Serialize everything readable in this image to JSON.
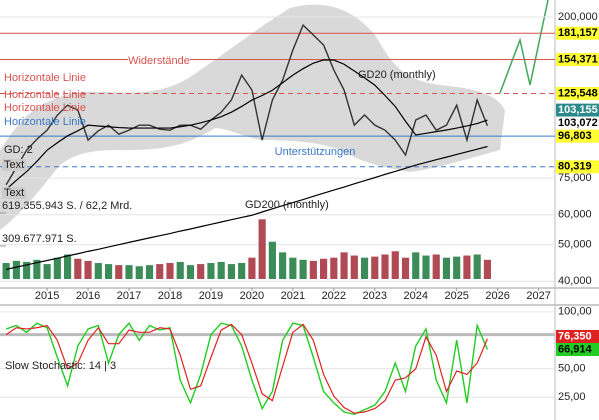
{
  "chart_data": [
    {
      "type": "line",
      "x": [
        2014,
        2014.25,
        2014.5,
        2014.75,
        2015,
        2015.25,
        2015.5,
        2015.75,
        2016,
        2016.25,
        2016.5,
        2016.75,
        2017,
        2017.25,
        2017.5,
        2017.75,
        2018,
        2018.25,
        2018.5,
        2018.75,
        2019,
        2019.25,
        2019.5,
        2019.75,
        2020,
        2020.25,
        2020.5,
        2020.75,
        2021,
        2021.25,
        2021.5,
        2021.75,
        2022,
        2022.25,
        2022.5,
        2022.75,
        2023,
        2023.25,
        2023.5,
        2023.75,
        2024,
        2024.25,
        2024.5,
        2024.75,
        2025,
        2025.25,
        2025.5,
        2025.75
      ],
      "xlim": [
        2013.85,
        2027.4
      ],
      "xticks": [
        2015,
        2016,
        2017,
        2018,
        2019,
        2020,
        2021,
        2022,
        2023,
        2024,
        2025,
        2026,
        2027
      ],
      "ylim": [
        38400,
        221800
      ],
      "log": true,
      "grid": true,
      "yticks": [
        {
          "value": 40000,
          "label": "40,000"
        },
        {
          "value": 50000,
          "label": "50,000"
        },
        {
          "value": 60000,
          "label": "60,000"
        },
        {
          "value": 75000,
          "label": "75,000"
        },
        {
          "value": 200000,
          "label": "200,000"
        }
      ],
      "series": [
        {
          "color": "#333333",
          "values": [
            72000,
            80000,
            88900,
            95000,
            100400,
            110000,
            116900,
            113500,
            94500,
            100000,
            103500,
            98000,
            100400,
            103500,
            103500,
            101000,
            100400,
            103500,
            103500,
            101000,
            106800,
            112000,
            120600,
            140400,
            128200,
            94500,
            120600,
            136200,
            163600,
            190400,
            179200,
            168600,
            144800,
            128200,
            103500,
            110100,
            103500,
            100400,
            94500,
            86300,
            106800,
            110100,
            100400,
            103500,
            116900,
            94500,
            120600,
            103155
          ]
        },
        {
          "name": "GD20 (monthly)",
          "color": "#000000",
          "values": [
            70000,
            74000,
            78000,
            83000,
            88900,
            93000,
            97000,
            100000,
            103500,
            103000,
            102500,
            102000,
            101700,
            101700,
            101700,
            101700,
            101700,
            102500,
            103500,
            105000,
            106800,
            109000,
            112000,
            116000,
            120600,
            124000,
            128000,
            134000,
            140400,
            146000,
            151000,
            154000,
            153900,
            150000,
            144000,
            138000,
            132100,
            124000,
            116000,
            106000,
            97500,
            98500,
            99500,
            100500,
            101700,
            103000,
            104500,
            106800
          ]
        },
        {
          "name": "GD200 (monthly)",
          "color": "#000000",
          "values": [
            43000,
            43600,
            44200,
            44800,
            45400,
            46000,
            46700,
            47300,
            48000,
            48600,
            49300,
            50000,
            50700,
            51400,
            52100,
            52800,
            53500,
            54300,
            55000,
            55800,
            56600,
            57400,
            58200,
            59000,
            59800,
            61000,
            62200,
            63400,
            64600,
            65800,
            67100,
            68400,
            69700,
            71000,
            72400,
            73800,
            75200,
            76700,
            78100,
            79600,
            81200,
            82500,
            83900,
            85200,
            86600,
            88000,
            89400,
            90900
          ]
        }
      ],
      "levels": [
        {
          "value": 181157,
          "label": "181,157",
          "color": "#d9534f",
          "line": "solid",
          "box": "#ffff33",
          "box_text": "#000000"
        },
        {
          "value": 154371,
          "label": "154,371",
          "color": "#d9534f",
          "line": "solid",
          "box": "#ffff33",
          "box_text": "#000000"
        },
        {
          "value": 125548,
          "label": "125,548",
          "color": "#d9534f",
          "line": "dashed",
          "box": "#ffff33",
          "box_text": "#000000"
        },
        {
          "value": 103155,
          "label": "103,155",
          "color": "#2d8a8a",
          "line": "none",
          "box": "#2d8a8a",
          "box_text": "#ffffff"
        },
        {
          "value": 103072,
          "label": "103,072",
          "color": "#2d8a8a",
          "line": "none",
          "box": "#ffffff",
          "box_text": "#000000"
        },
        {
          "value": 96803,
          "label": "96,803",
          "color": "#3a78c8",
          "line": "solid",
          "box": "#ffff33",
          "box_text": "#000000"
        },
        {
          "value": 80319,
          "label": "80,319",
          "color": "#3a78c8",
          "line": "dashed",
          "box": "#ffff33",
          "box_text": "#000000"
        }
      ],
      "annotations": [
        "Widerstände",
        "Horizontale Linie",
        "Horizontale Linie",
        "Horizontale Linie",
        "Horizontale Linie",
        "GD: 2",
        "Text",
        "Text",
        "Unterstützungen"
      ]
    },
    {
      "type": "bar",
      "x": [
        2014,
        2014.25,
        2014.5,
        2014.75,
        2015,
        2015.25,
        2015.5,
        2015.75,
        2016,
        2016.25,
        2016.5,
        2016.75,
        2017,
        2017.25,
        2017.5,
        2017.75,
        2018,
        2018.25,
        2018.5,
        2018.75,
        2019,
        2019.25,
        2019.5,
        2019.75,
        2020,
        2020.25,
        2020.5,
        2020.75,
        2021,
        2021.25,
        2021.5,
        2021.75,
        2022,
        2022.25,
        2022.5,
        2022.75,
        2023,
        2023.25,
        2023.5,
        2023.75,
        2024,
        2024.25,
        2024.5,
        2024.75,
        2025,
        2025.25,
        2025.5,
        2025.75
      ],
      "xlim": [
        2013.85,
        2027.4
      ],
      "ylim": [
        0,
        619355943
      ],
      "yticks": [
        {
          "value": 619355943,
          "label": "619.355.943 S. / 62,2 Mrd."
        },
        {
          "value": 309677971,
          "label": "309.677.971 S."
        }
      ],
      "up_color": "#3c8c5a",
      "down_color": "#b04a55",
      "values": [
        150000000,
        170000000,
        160000000,
        180000000,
        140000000,
        200000000,
        230000000,
        190000000,
        170000000,
        150000000,
        140000000,
        130000000,
        130000000,
        120000000,
        130000000,
        140000000,
        150000000,
        160000000,
        130000000,
        140000000,
        150000000,
        160000000,
        140000000,
        150000000,
        200000000,
        560000000,
        350000000,
        250000000,
        200000000,
        180000000,
        170000000,
        190000000,
        200000000,
        250000000,
        220000000,
        200000000,
        210000000,
        230000000,
        260000000,
        200000000,
        250000000,
        220000000,
        230000000,
        200000000,
        210000000,
        220000000,
        230000000,
        180000000
      ]
    },
    {
      "type": "line",
      "title": "Slow Stochastic: 14 | 3",
      "x": [
        2014,
        2014.25,
        2014.5,
        2014.75,
        2015,
        2015.25,
        2015.5,
        2015.75,
        2016,
        2016.25,
        2016.5,
        2016.75,
        2017,
        2017.25,
        2017.5,
        2017.75,
        2018,
        2018.25,
        2018.5,
        2018.75,
        2019,
        2019.25,
        2019.5,
        2019.75,
        2020,
        2020.25,
        2020.5,
        2020.75,
        2021,
        2021.25,
        2021.5,
        2021.75,
        2022,
        2022.25,
        2022.5,
        2022.75,
        2023,
        2023.25,
        2023.5,
        2023.75,
        2024,
        2024.25,
        2024.5,
        2024.75,
        2025,
        2025.25,
        2025.5,
        2025.75
      ],
      "xlim": [
        2013.85,
        2027.4
      ],
      "ylim": [
        5,
        106
      ],
      "yticks": [
        {
          "value": 100,
          "label": "100,00"
        },
        {
          "value": 50,
          "label": "50,00"
        },
        {
          "value": 25,
          "label": "25,00"
        }
      ],
      "band": 80,
      "grid": true,
      "series": [
        {
          "color": "#22cc22",
          "label_text_color": "#000000",
          "values": [
            85,
            88,
            82,
            90,
            86,
            60,
            35,
            70,
            85,
            88,
            55,
            80,
            90,
            75,
            88,
            84,
            86,
            40,
            20,
            45,
            80,
            90,
            88,
            70,
            40,
            15,
            30,
            75,
            90,
            88,
            60,
            30,
            20,
            12,
            10,
            14,
            18,
            30,
            55,
            30,
            70,
            85,
            40,
            20,
            75,
            20,
            88,
            66.914
          ],
          "value_labels": [
            null,
            null,
            null,
            null,
            null,
            null,
            null,
            null,
            null,
            null,
            null,
            null,
            null,
            null,
            null,
            null,
            null,
            null,
            null,
            null,
            null,
            null,
            null,
            null,
            null,
            null,
            null,
            null,
            null,
            null,
            null,
            null,
            null,
            null,
            null,
            null,
            null,
            null,
            null,
            null,
            null,
            null,
            null,
            null,
            null,
            null,
            null,
            "66,914"
          ]
        },
        {
          "color": "#dd2222",
          "label_text_color": "#ffffff",
          "values": [
            80,
            86,
            85,
            86,
            88,
            75,
            50,
            55,
            75,
            86,
            72,
            72,
            84,
            82,
            82,
            86,
            85,
            62,
            32,
            35,
            60,
            84,
            89,
            80,
            55,
            28,
            22,
            52,
            82,
            89,
            75,
            45,
            26,
            16,
            11,
            12,
            15,
            22,
            40,
            42,
            50,
            78,
            62,
            30,
            48,
            45,
            55,
            76.35
          ],
          "value_labels": [
            null,
            null,
            null,
            null,
            null,
            null,
            null,
            null,
            null,
            null,
            null,
            null,
            null,
            null,
            null,
            null,
            null,
            null,
            null,
            null,
            null,
            null,
            null,
            null,
            null,
            null,
            null,
            null,
            null,
            null,
            null,
            null,
            null,
            null,
            null,
            null,
            null,
            null,
            null,
            null,
            null,
            null,
            null,
            null,
            null,
            null,
            null,
            "76,350"
          ]
        }
      ]
    }
  ]
}
